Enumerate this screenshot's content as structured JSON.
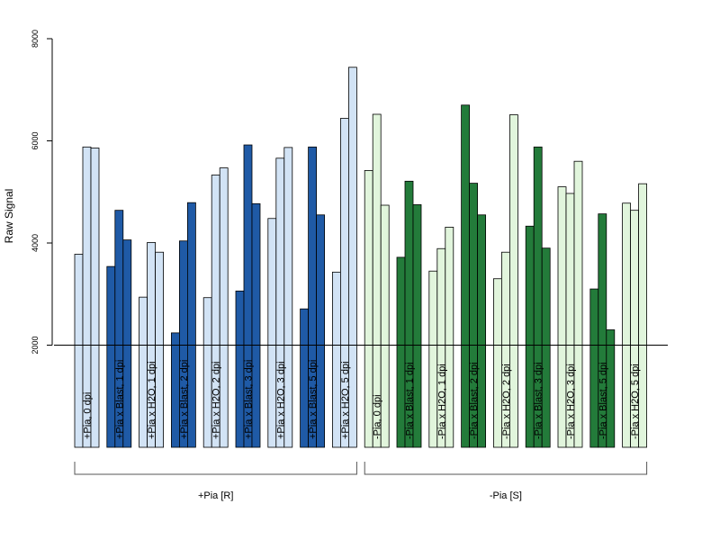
{
  "chart_data": {
    "type": "bar",
    "ylabel": "Raw Signal",
    "yticks": [
      2000,
      4000,
      6000,
      8000
    ],
    "ylim": [
      0,
      8000
    ],
    "reference_line": 2000,
    "colors": {
      "light_blue": "#d2e3f5",
      "dark_blue": "#1f5aa6",
      "light_green": "#e1f5dc",
      "dark_green": "#237b3a"
    },
    "categories": [
      {
        "label": "+Pia, 0 dpi",
        "color": "light_blue",
        "values": [
          3780,
          5880,
          5860
        ]
      },
      {
        "label": "+Pia x Blast, 1 dpi",
        "color": "dark_blue",
        "values": [
          3540,
          4640,
          4060
        ]
      },
      {
        "label": "+Pia x H2O, 1 dpi",
        "color": "light_blue",
        "values": [
          2940,
          4010,
          3820
        ]
      },
      {
        "label": "+Pia x Blast, 2 dpi",
        "color": "dark_blue",
        "values": [
          2240,
          4040,
          4790
        ]
      },
      {
        "label": "+Pia x H2O, 2 dpi",
        "color": "light_blue",
        "values": [
          2930,
          5330,
          5470
        ]
      },
      {
        "label": "+Pia x Blast, 3 dpi",
        "color": "dark_blue",
        "values": [
          3060,
          5920,
          4770
        ]
      },
      {
        "label": "+Pia x H2O, 3 dpi",
        "color": "light_blue",
        "values": [
          4480,
          5660,
          5870
        ]
      },
      {
        "label": "+Pia x Blast, 5 dpi",
        "color": "dark_blue",
        "values": [
          2710,
          5880,
          4550
        ]
      },
      {
        "label": "+Pia x H2O, 5 dpi",
        "color": "light_blue",
        "values": [
          3430,
          6440,
          7440
        ]
      },
      {
        "label": "-Pia, 0 dpi",
        "color": "light_green",
        "values": [
          5420,
          6520,
          4740
        ]
      },
      {
        "label": "-Pia x Blast, 1 dpi",
        "color": "dark_green",
        "values": [
          3720,
          5210,
          4750
        ]
      },
      {
        "label": "-Pia x H2O, 1 dpi",
        "color": "light_green",
        "values": [
          3450,
          3890,
          4310
        ]
      },
      {
        "label": "-Pia x Blast, 2 dpi",
        "color": "dark_green",
        "values": [
          6700,
          5170,
          4550
        ]
      },
      {
        "label": "-Pia x H2O, 2 dpi",
        "color": "light_green",
        "values": [
          3300,
          3820,
          6510
        ]
      },
      {
        "label": "-Pia x Blast, 3 dpi",
        "color": "dark_green",
        "values": [
          4330,
          5880,
          3900
        ]
      },
      {
        "label": "-Pia x H2O, 3 dpi",
        "color": "light_green",
        "values": [
          5100,
          4970,
          5600
        ]
      },
      {
        "label": "-Pia x Blast, 5 dpi",
        "color": "dark_green",
        "values": [
          3100,
          4570,
          2300
        ]
      },
      {
        "label": "-Pia x H2O, 5 dpi",
        "color": "light_green",
        "values": [
          4780,
          4640,
          5160
        ]
      }
    ],
    "groups": [
      {
        "label": "+Pia [R]",
        "from": 0,
        "to": 8
      },
      {
        "label": "-Pia [S]",
        "from": 9,
        "to": 17
      }
    ]
  }
}
